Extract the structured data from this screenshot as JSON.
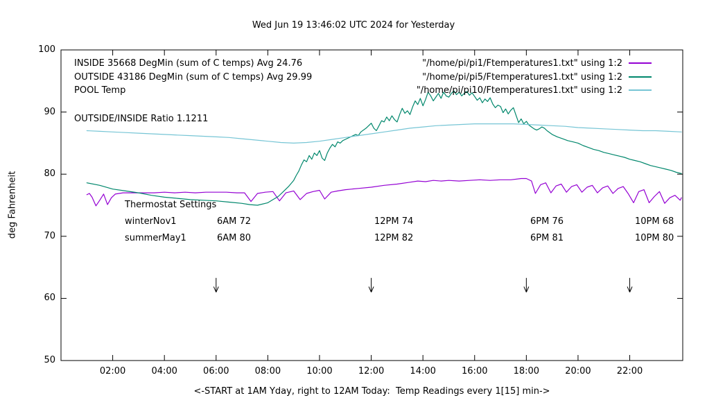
{
  "title": "Wed Jun 19 13:46:02 UTC 2024 for Yesterday",
  "ylabel": "deg Fahrenheit",
  "xlabel": "<-START at 1AM Yday, right to 12AM Today:  Temp Readings every 1[15] min->",
  "ratio_text": "OUTSIDE/INSIDE Ratio 1.1211",
  "legend": [
    {
      "label": "INSIDE 35668 DegMin (sum of C temps) Avg 24.76",
      "file": "\"/home/pi/pi1/Ftemperatures1.txt\" using 1:2"
    },
    {
      "label": "OUTSIDE 43186 DegMin (sum of C temps) Avg 29.99",
      "file": "\"/home/pi/pi5/Ftemperatures1.txt\" using 1:2"
    },
    {
      "label": "POOL Temp",
      "file": "\"/home/pi/pi10/Ftemperatures1.txt\" using 1:2"
    }
  ],
  "thermostat": {
    "heading": "Thermostat Settings",
    "rows": [
      {
        "label": "winterNov1",
        "cols": [
          "6AM 72",
          "12PM 74",
          "6PM 76",
          "10PM 68"
        ]
      },
      {
        "label": "summerMay1",
        "cols": [
          "6AM 80",
          "12PM 82",
          "6PM 81",
          "10PM 80"
        ]
      }
    ]
  },
  "axes": {
    "xlim": [
      0,
      24.05
    ],
    "ylim": [
      50,
      100
    ],
    "x_ticks": [
      {
        "v": 2,
        "label": "02:00"
      },
      {
        "v": 4,
        "label": "04:00"
      },
      {
        "v": 6,
        "label": "06:00"
      },
      {
        "v": 8,
        "label": "08:00"
      },
      {
        "v": 10,
        "label": "10:00"
      },
      {
        "v": 12,
        "label": "12:00"
      },
      {
        "v": 14,
        "label": "14:00"
      },
      {
        "v": 16,
        "label": "16:00"
      },
      {
        "v": 18,
        "label": "18:00"
      },
      {
        "v": 20,
        "label": "20:00"
      },
      {
        "v": 22,
        "label": "22:00"
      }
    ],
    "y_ticks": [
      {
        "v": 50,
        "label": "50"
      },
      {
        "v": 60,
        "label": "60"
      },
      {
        "v": 70,
        "label": "70"
      },
      {
        "v": 80,
        "label": "80"
      },
      {
        "v": 90,
        "label": "90"
      },
      {
        "v": 100,
        "label": "100"
      }
    ]
  },
  "chart_data": {
    "type": "line",
    "title": "Wed Jun 19 13:46:02 UTC 2024 for Yesterday",
    "xlabel": "<-START at 1AM Yday, right to 12AM Today:  Temp Readings every 1[15] min->",
    "ylabel": "deg Fahrenheit",
    "xlim": [
      0,
      24.05
    ],
    "ylim": [
      50,
      100
    ],
    "legend_position": "top-left-inside",
    "grid": false,
    "x_units": "hours (1=1AM yesterday, 24=12AM today)",
    "arrows_at_hours": [
      6,
      12,
      18,
      22
    ],
    "arrow_y_range": [
      63.3,
      61.0
    ],
    "series": [
      {
        "name": "INSIDE",
        "color": "#9400d3",
        "points": [
          [
            1.0,
            76.7
          ],
          [
            1.1,
            76.9
          ],
          [
            1.2,
            76.3
          ],
          [
            1.35,
            74.9
          ],
          [
            1.5,
            75.8
          ],
          [
            1.65,
            76.8
          ],
          [
            1.8,
            75.1
          ],
          [
            1.95,
            76.2
          ],
          [
            2.1,
            76.8
          ],
          [
            2.4,
            77.0
          ],
          [
            2.8,
            77.0
          ],
          [
            3.2,
            77.0
          ],
          [
            3.6,
            77.0
          ],
          [
            4.0,
            77.1
          ],
          [
            4.4,
            77.0
          ],
          [
            4.8,
            77.1
          ],
          [
            5.2,
            77.0
          ],
          [
            5.6,
            77.1
          ],
          [
            6.0,
            77.1
          ],
          [
            6.4,
            77.1
          ],
          [
            6.8,
            77.0
          ],
          [
            7.1,
            77.0
          ],
          [
            7.35,
            75.6
          ],
          [
            7.6,
            76.9
          ],
          [
            7.9,
            77.1
          ],
          [
            8.2,
            77.2
          ],
          [
            8.45,
            75.7
          ],
          [
            8.7,
            77.0
          ],
          [
            9.0,
            77.3
          ],
          [
            9.25,
            75.9
          ],
          [
            9.5,
            76.9
          ],
          [
            9.75,
            77.2
          ],
          [
            10.0,
            77.4
          ],
          [
            10.2,
            76.0
          ],
          [
            10.45,
            77.1
          ],
          [
            10.7,
            77.3
          ],
          [
            11.0,
            77.5
          ],
          [
            11.5,
            77.7
          ],
          [
            12.0,
            77.9
          ],
          [
            12.5,
            78.2
          ],
          [
            13.0,
            78.4
          ],
          [
            13.5,
            78.7
          ],
          [
            13.8,
            78.9
          ],
          [
            14.1,
            78.8
          ],
          [
            14.4,
            79.0
          ],
          [
            14.7,
            78.9
          ],
          [
            15.0,
            79.0
          ],
          [
            15.4,
            78.9
          ],
          [
            15.8,
            79.0
          ],
          [
            16.2,
            79.1
          ],
          [
            16.6,
            79.0
          ],
          [
            17.0,
            79.1
          ],
          [
            17.4,
            79.1
          ],
          [
            17.8,
            79.3
          ],
          [
            18.0,
            79.3
          ],
          [
            18.2,
            78.9
          ],
          [
            18.35,
            76.9
          ],
          [
            18.55,
            78.3
          ],
          [
            18.75,
            78.6
          ],
          [
            18.95,
            77.0
          ],
          [
            19.15,
            78.1
          ],
          [
            19.35,
            78.4
          ],
          [
            19.55,
            77.1
          ],
          [
            19.75,
            78.0
          ],
          [
            19.95,
            78.3
          ],
          [
            20.15,
            77.1
          ],
          [
            20.35,
            77.9
          ],
          [
            20.55,
            78.2
          ],
          [
            20.75,
            77.0
          ],
          [
            20.95,
            77.8
          ],
          [
            21.15,
            78.1
          ],
          [
            21.35,
            76.9
          ],
          [
            21.55,
            77.7
          ],
          [
            21.75,
            78.0
          ],
          [
            21.95,
            76.8
          ],
          [
            22.15,
            75.4
          ],
          [
            22.35,
            77.2
          ],
          [
            22.55,
            77.5
          ],
          [
            22.75,
            75.4
          ],
          [
            22.95,
            76.4
          ],
          [
            23.15,
            77.2
          ],
          [
            23.35,
            75.3
          ],
          [
            23.55,
            76.2
          ],
          [
            23.75,
            76.6
          ],
          [
            23.95,
            75.8
          ],
          [
            24.0,
            76.2
          ]
        ]
      },
      {
        "name": "OUTSIDE",
        "color": "#00876c",
        "points": [
          [
            1.0,
            78.6
          ],
          [
            1.5,
            78.2
          ],
          [
            2.0,
            77.6
          ],
          [
            2.5,
            77.3
          ],
          [
            3.0,
            77.0
          ],
          [
            3.5,
            76.6
          ],
          [
            4.0,
            76.3
          ],
          [
            4.5,
            76.1
          ],
          [
            5.0,
            75.9
          ],
          [
            5.5,
            75.8
          ],
          [
            6.0,
            75.7
          ],
          [
            6.5,
            75.5
          ],
          [
            7.0,
            75.3
          ],
          [
            7.3,
            75.1
          ],
          [
            7.6,
            75.0
          ],
          [
            8.0,
            75.4
          ],
          [
            8.2,
            75.9
          ],
          [
            8.4,
            76.4
          ],
          [
            8.6,
            77.2
          ],
          [
            8.8,
            78.0
          ],
          [
            9.0,
            79.0
          ],
          [
            9.1,
            79.8
          ],
          [
            9.2,
            80.5
          ],
          [
            9.3,
            81.5
          ],
          [
            9.4,
            82.3
          ],
          [
            9.5,
            82.0
          ],
          [
            9.6,
            83.0
          ],
          [
            9.7,
            82.4
          ],
          [
            9.8,
            83.4
          ],
          [
            9.9,
            83.0
          ],
          [
            10.0,
            83.8
          ],
          [
            10.1,
            82.6
          ],
          [
            10.2,
            82.2
          ],
          [
            10.3,
            83.4
          ],
          [
            10.4,
            84.2
          ],
          [
            10.5,
            84.8
          ],
          [
            10.6,
            84.4
          ],
          [
            10.7,
            85.2
          ],
          [
            10.8,
            85.0
          ],
          [
            10.9,
            85.4
          ],
          [
            11.0,
            85.6
          ],
          [
            11.2,
            86.0
          ],
          [
            11.4,
            86.4
          ],
          [
            11.5,
            86.2
          ],
          [
            11.6,
            86.8
          ],
          [
            11.8,
            87.4
          ],
          [
            12.0,
            88.2
          ],
          [
            12.1,
            87.4
          ],
          [
            12.2,
            87.0
          ],
          [
            12.3,
            87.8
          ],
          [
            12.4,
            88.6
          ],
          [
            12.5,
            88.4
          ],
          [
            12.6,
            89.2
          ],
          [
            12.7,
            88.6
          ],
          [
            12.8,
            89.4
          ],
          [
            12.9,
            88.8
          ],
          [
            13.0,
            88.4
          ],
          [
            13.1,
            89.6
          ],
          [
            13.2,
            90.6
          ],
          [
            13.3,
            89.8
          ],
          [
            13.4,
            90.2
          ],
          [
            13.5,
            89.6
          ],
          [
            13.6,
            90.8
          ],
          [
            13.7,
            91.8
          ],
          [
            13.8,
            91.2
          ],
          [
            13.9,
            92.2
          ],
          [
            14.0,
            91.0
          ],
          [
            14.1,
            92.0
          ],
          [
            14.2,
            93.2
          ],
          [
            14.3,
            92.6
          ],
          [
            14.4,
            91.8
          ],
          [
            14.5,
            92.4
          ],
          [
            14.6,
            93.0
          ],
          [
            14.7,
            92.2
          ],
          [
            14.8,
            93.2
          ],
          [
            14.9,
            92.6
          ],
          [
            15.0,
            92.4
          ],
          [
            15.1,
            93.0
          ],
          [
            15.2,
            93.4
          ],
          [
            15.3,
            92.8
          ],
          [
            15.4,
            93.2
          ],
          [
            15.5,
            92.6
          ],
          [
            15.6,
            93.0
          ],
          [
            15.7,
            93.3
          ],
          [
            15.8,
            92.7
          ],
          [
            15.9,
            93.1
          ],
          [
            16.0,
            92.5
          ],
          [
            16.1,
            91.9
          ],
          [
            16.2,
            92.3
          ],
          [
            16.3,
            91.5
          ],
          [
            16.4,
            92.1
          ],
          [
            16.5,
            91.7
          ],
          [
            16.6,
            92.3
          ],
          [
            16.7,
            91.3
          ],
          [
            16.8,
            90.7
          ],
          [
            16.9,
            91.1
          ],
          [
            17.0,
            90.9
          ],
          [
            17.1,
            89.9
          ],
          [
            17.2,
            90.5
          ],
          [
            17.3,
            89.7
          ],
          [
            17.4,
            90.3
          ],
          [
            17.5,
            90.7
          ],
          [
            17.6,
            89.5
          ],
          [
            17.7,
            88.3
          ],
          [
            17.8,
            88.9
          ],
          [
            17.9,
            88.1
          ],
          [
            18.0,
            88.5
          ],
          [
            18.1,
            87.9
          ],
          [
            18.2,
            87.6
          ],
          [
            18.3,
            87.3
          ],
          [
            18.4,
            87.1
          ],
          [
            18.5,
            87.3
          ],
          [
            18.6,
            87.6
          ],
          [
            18.7,
            87.4
          ],
          [
            18.8,
            87.0
          ],
          [
            19.0,
            86.4
          ],
          [
            19.2,
            86.0
          ],
          [
            19.4,
            85.7
          ],
          [
            19.6,
            85.4
          ],
          [
            19.8,
            85.2
          ],
          [
            20.0,
            85.0
          ],
          [
            20.2,
            84.6
          ],
          [
            20.4,
            84.3
          ],
          [
            20.6,
            84.0
          ],
          [
            20.8,
            83.8
          ],
          [
            21.0,
            83.5
          ],
          [
            21.2,
            83.3
          ],
          [
            21.4,
            83.1
          ],
          [
            21.6,
            82.9
          ],
          [
            21.8,
            82.7
          ],
          [
            22.0,
            82.4
          ],
          [
            22.2,
            82.2
          ],
          [
            22.4,
            82.0
          ],
          [
            22.6,
            81.7
          ],
          [
            22.8,
            81.4
          ],
          [
            23.0,
            81.2
          ],
          [
            23.2,
            81.0
          ],
          [
            23.4,
            80.8
          ],
          [
            23.6,
            80.6
          ],
          [
            23.8,
            80.3
          ],
          [
            24.0,
            80.1
          ]
        ]
      },
      {
        "name": "POOL",
        "color": "#76c5d5",
        "points": [
          [
            1.0,
            87.0
          ],
          [
            1.5,
            86.9
          ],
          [
            2.0,
            86.8
          ],
          [
            2.5,
            86.7
          ],
          [
            3.0,
            86.6
          ],
          [
            3.5,
            86.5
          ],
          [
            4.0,
            86.4
          ],
          [
            4.5,
            86.3
          ],
          [
            5.0,
            86.2
          ],
          [
            5.5,
            86.1
          ],
          [
            6.0,
            86.0
          ],
          [
            6.5,
            85.9
          ],
          [
            7.0,
            85.7
          ],
          [
            7.5,
            85.5
          ],
          [
            8.0,
            85.3
          ],
          [
            8.5,
            85.1
          ],
          [
            9.0,
            85.0
          ],
          [
            9.5,
            85.1
          ],
          [
            10.0,
            85.3
          ],
          [
            10.5,
            85.6
          ],
          [
            11.0,
            85.9
          ],
          [
            11.5,
            86.2
          ],
          [
            12.0,
            86.5
          ],
          [
            12.5,
            86.8
          ],
          [
            13.0,
            87.1
          ],
          [
            13.5,
            87.4
          ],
          [
            14.0,
            87.6
          ],
          [
            14.5,
            87.8
          ],
          [
            15.0,
            87.9
          ],
          [
            15.5,
            88.0
          ],
          [
            16.0,
            88.1
          ],
          [
            16.5,
            88.1
          ],
          [
            17.0,
            88.1
          ],
          [
            17.5,
            88.1
          ],
          [
            18.0,
            88.0
          ],
          [
            18.5,
            87.9
          ],
          [
            19.0,
            87.8
          ],
          [
            19.5,
            87.7
          ],
          [
            20.0,
            87.5
          ],
          [
            20.5,
            87.4
          ],
          [
            21.0,
            87.3
          ],
          [
            21.5,
            87.2
          ],
          [
            22.0,
            87.1
          ],
          [
            22.5,
            87.0
          ],
          [
            23.0,
            87.0
          ],
          [
            23.5,
            86.9
          ],
          [
            24.0,
            86.8
          ]
        ]
      }
    ]
  }
}
